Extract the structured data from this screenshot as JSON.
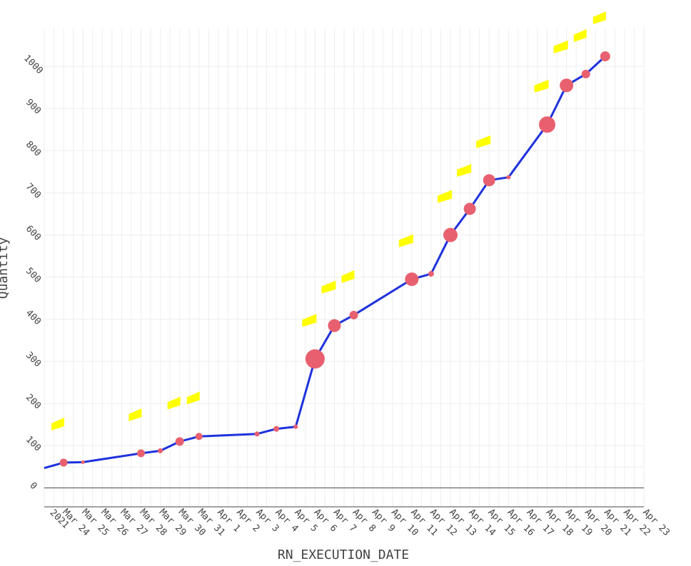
{
  "chart_data": {
    "type": "line",
    "xlabel": "RN_EXECUTION_DATE",
    "ylabel": "Quantity",
    "x_range": [
      "2021-03-23",
      "2021-04-23"
    ],
    "ylim": [
      -45,
      1090
    ],
    "grid": true,
    "colors": {
      "line": "#1f32dc",
      "marker": "#e8606f",
      "label": "#ffff00",
      "grid": "#eeeeee",
      "zero_line": "#444444"
    },
    "y_ticks": [
      0,
      100,
      200,
      300,
      400,
      500,
      600,
      700,
      800,
      900,
      1000
    ],
    "y_tick_labels": [
      "0",
      "100",
      "200",
      "300",
      "400",
      "500",
      "600",
      "700",
      "800",
      "900",
      "1000"
    ],
    "x_ticks": [
      "2021-03-24",
      "2021-03-25",
      "2021-03-26",
      "2021-03-27",
      "2021-03-28",
      "2021-03-29",
      "2021-03-30",
      "2021-03-31",
      "2021-04-01",
      "2021-04-02",
      "2021-04-03",
      "2021-04-04",
      "2021-04-05",
      "2021-04-06",
      "2021-04-07",
      "2021-04-08",
      "2021-04-09",
      "2021-04-10",
      "2021-04-11",
      "2021-04-12",
      "2021-04-13",
      "2021-04-14",
      "2021-04-15",
      "2021-04-16",
      "2021-04-17",
      "2021-04-18",
      "2021-04-19",
      "2021-04-20",
      "2021-04-21",
      "2021-04-22",
      "2021-04-23"
    ],
    "x_tick_labels": [
      "Mar 24\n2021",
      "Mar 25",
      "Mar 26",
      "Mar 27",
      "Mar 28",
      "Mar 29",
      "Mar 30",
      "Mar 31",
      "Apr 1",
      "Apr 2",
      "Apr 3",
      "Apr 4",
      "Apr 5",
      "Apr 6",
      "Apr 7",
      "Apr 8",
      "Apr 9",
      "Apr 10",
      "Apr 11",
      "Apr 12",
      "Apr 13",
      "Apr 14",
      "Apr 15",
      "Apr 16",
      "Apr 17",
      "Apr 18",
      "Apr 19",
      "Apr 20",
      "Apr 21",
      "Apr 22",
      "Apr 23"
    ],
    "line_start": {
      "x": "2021-03-23",
      "y": 47
    },
    "series": [
      {
        "points": [
          {
            "x": "2021-03-24",
            "y": 60,
            "size": 9
          },
          {
            "x": "2021-03-25",
            "y": 61,
            "size": 3
          },
          {
            "x": "2021-03-28",
            "y": 82,
            "size": 9
          },
          {
            "x": "2021-03-29",
            "y": 88,
            "size": 5
          },
          {
            "x": "2021-03-30",
            "y": 110,
            "size": 10
          },
          {
            "x": "2021-03-31",
            "y": 122,
            "size": 8
          },
          {
            "x": "2021-04-03",
            "y": 128,
            "size": 5
          },
          {
            "x": "2021-04-04",
            "y": 140,
            "size": 6
          },
          {
            "x": "2021-04-05",
            "y": 145,
            "size": 4
          },
          {
            "x": "2021-04-06",
            "y": 306,
            "size": 25
          },
          {
            "x": "2021-04-07",
            "y": 385,
            "size": 16
          },
          {
            "x": "2021-04-08",
            "y": 410,
            "size": 10
          },
          {
            "x": "2021-04-11",
            "y": 495,
            "size": 17
          },
          {
            "x": "2021-04-12",
            "y": 508,
            "size": 6
          },
          {
            "x": "2021-04-13",
            "y": 600,
            "size": 18
          },
          {
            "x": "2021-04-14",
            "y": 662,
            "size": 15
          },
          {
            "x": "2021-04-15",
            "y": 730,
            "size": 15
          },
          {
            "x": "2021-04-16",
            "y": 737,
            "size": 4
          },
          {
            "x": "2021-04-18",
            "y": 862,
            "size": 21
          },
          {
            "x": "2021-04-19",
            "y": 955,
            "size": 17
          },
          {
            "x": "2021-04-20",
            "y": 982,
            "size": 10
          },
          {
            "x": "2021-04-21",
            "y": 1024,
            "size": 12
          }
        ]
      }
    ]
  }
}
